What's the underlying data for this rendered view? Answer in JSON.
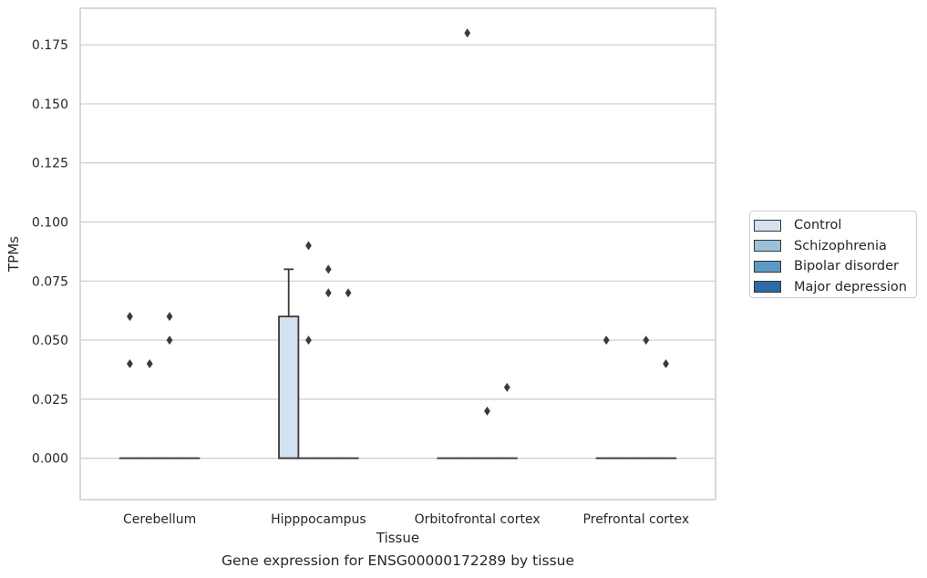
{
  "chart_data": {
    "type": "box",
    "title": "",
    "caption": "Gene expression for ENSG00000172289 by tissue",
    "xlabel": "Tissue",
    "ylabel": "TPMs",
    "ylim": [
      -0.0175,
      0.1905
    ],
    "yticks": [
      "0.000",
      "0.025",
      "0.050",
      "0.075",
      "0.100",
      "0.125",
      "0.150",
      "0.175"
    ],
    "categories": [
      "Cerebellum",
      "Hipppocampus",
      "Orbitofrontal cortex",
      "Prefrontal cortex"
    ],
    "grid": true,
    "legend_placement": "right",
    "series": [
      {
        "name": "Control",
        "color": "#d3e2f0",
        "boxes": [
          {
            "category": "Cerebellum",
            "q1": 0,
            "median": 0,
            "q3": 0,
            "whisker_low": 0,
            "whisker_high": 0,
            "outliers": [
              0.06,
              0.04
            ]
          },
          {
            "category": "Hipppocampus",
            "q1": 0,
            "median": 0,
            "q3": 0.06,
            "whisker_low": 0,
            "whisker_high": 0.08,
            "outliers": []
          },
          {
            "category": "Orbitofrontal cortex",
            "q1": 0,
            "median": 0,
            "q3": 0,
            "whisker_low": 0,
            "whisker_high": 0,
            "outliers": []
          },
          {
            "category": "Prefrontal cortex",
            "q1": 0,
            "median": 0,
            "q3": 0,
            "whisker_low": 0,
            "whisker_high": 0,
            "outliers": [
              0.05
            ]
          }
        ]
      },
      {
        "name": "Schizophrenia",
        "color": "#9ac1da",
        "boxes": [
          {
            "category": "Cerebellum",
            "q1": 0,
            "median": 0,
            "q3": 0,
            "whisker_low": 0,
            "whisker_high": 0,
            "outliers": [
              0.04
            ]
          },
          {
            "category": "Hipppocampus",
            "q1": 0,
            "median": 0,
            "q3": 0,
            "whisker_low": 0,
            "whisker_high": 0,
            "outliers": [
              0.09,
              0.05
            ]
          },
          {
            "category": "Orbitofrontal cortex",
            "q1": 0,
            "median": 0,
            "q3": 0,
            "whisker_low": 0,
            "whisker_high": 0,
            "outliers": [
              0.18
            ]
          },
          {
            "category": "Prefrontal cortex",
            "q1": 0,
            "median": 0,
            "q3": 0,
            "whisker_low": 0,
            "whisker_high": 0,
            "outliers": []
          }
        ]
      },
      {
        "name": "Bipolar disorder",
        "color": "#5d99c5",
        "boxes": [
          {
            "category": "Cerebellum",
            "q1": 0,
            "median": 0,
            "q3": 0,
            "whisker_low": 0,
            "whisker_high": 0,
            "outliers": [
              0.06,
              0.05
            ]
          },
          {
            "category": "Hipppocampus",
            "q1": 0,
            "median": 0,
            "q3": 0,
            "whisker_low": 0,
            "whisker_high": 0,
            "outliers": [
              0.08,
              0.07
            ]
          },
          {
            "category": "Orbitofrontal cortex",
            "q1": 0,
            "median": 0,
            "q3": 0,
            "whisker_low": 0,
            "whisker_high": 0,
            "outliers": [
              0.02
            ]
          },
          {
            "category": "Prefrontal cortex",
            "q1": 0,
            "median": 0,
            "q3": 0,
            "whisker_low": 0,
            "whisker_high": 0,
            "outliers": [
              0.05
            ]
          }
        ]
      },
      {
        "name": "Major depression",
        "color": "#2c6aa8",
        "boxes": [
          {
            "category": "Cerebellum",
            "q1": 0,
            "median": 0,
            "q3": 0,
            "whisker_low": 0,
            "whisker_high": 0,
            "outliers": []
          },
          {
            "category": "Hipppocampus",
            "q1": 0,
            "median": 0,
            "q3": 0,
            "whisker_low": 0,
            "whisker_high": 0,
            "outliers": [
              0.07
            ]
          },
          {
            "category": "Orbitofrontal cortex",
            "q1": 0,
            "median": 0,
            "q3": 0,
            "whisker_low": 0,
            "whisker_high": 0,
            "outliers": [
              0.03
            ]
          },
          {
            "category": "Prefrontal cortex",
            "q1": 0,
            "median": 0,
            "q3": 0,
            "whisker_low": 0,
            "whisker_high": 0,
            "outliers": [
              0.04
            ]
          }
        ]
      }
    ]
  }
}
